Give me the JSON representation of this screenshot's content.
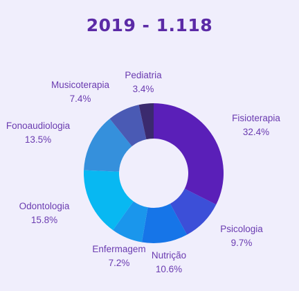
{
  "colors": {
    "title": "#5b2aa6",
    "label": "#6a3bb0",
    "background": "#f0eefc"
  },
  "chart_data": {
    "type": "pie",
    "title": "2019 - 1.118",
    "donut": true,
    "slices": [
      {
        "name": "Fisioterapia",
        "value": 32.4,
        "label": "32.4%",
        "color": "#5a1fb8"
      },
      {
        "name": "Psicologia",
        "value": 9.7,
        "label": "9.7%",
        "color": "#3c4fd8"
      },
      {
        "name": "Nutrição",
        "value": 10.6,
        "label": "10.6%",
        "color": "#1675e8"
      },
      {
        "name": "Enfermagem",
        "value": 7.2,
        "label": "7.2%",
        "color": "#1a96ec"
      },
      {
        "name": "Odontologia",
        "value": 15.8,
        "label": "15.8%",
        "color": "#08b8f2"
      },
      {
        "name": "Fonoaudiologia",
        "value": 13.5,
        "label": "13.5%",
        "color": "#3590dc"
      },
      {
        "name": "Musicoterapia",
        "value": 7.4,
        "label": "7.4%",
        "color": "#4a5ab4"
      },
      {
        "name": "Pediatria",
        "value": 3.4,
        "label": "3.4%",
        "color": "#3b2a6e"
      }
    ]
  }
}
